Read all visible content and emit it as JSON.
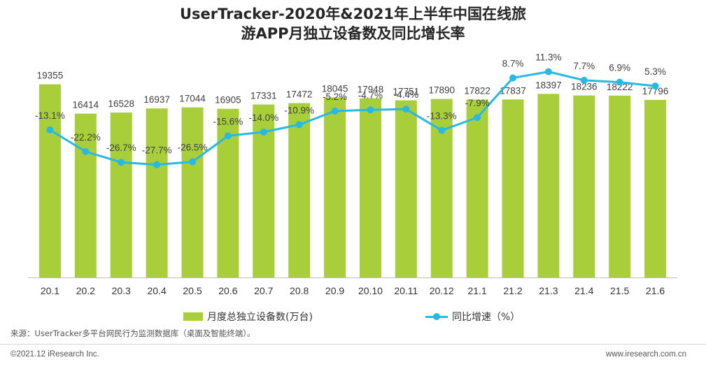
{
  "title_line1": "UserTracker-2020年&2021年上半年中国在线旅",
  "title_line2": "游APP月独立设备数及同比增长率",
  "chart_data": {
    "type": "bar+line",
    "categories": [
      "20.1",
      "20.2",
      "20.3",
      "20.4",
      "20.5",
      "20.6",
      "20.7",
      "20.8",
      "20.9",
      "20.10",
      "20.11",
      "20.12",
      "21.1",
      "21.2",
      "21.3",
      "21.4",
      "21.5",
      "21.6"
    ],
    "series": [
      {
        "name": "月度总独立设备数(万台)",
        "type": "bar",
        "color": "#a8cf3a",
        "values": [
          19355,
          16414,
          16528,
          16937,
          17044,
          16905,
          17331,
          17472,
          18045,
          17948,
          17751,
          17890,
          17822,
          17837,
          18397,
          18236,
          18222,
          17796
        ],
        "labels": [
          "19355",
          "16414",
          "16528",
          "16937",
          "17044",
          "16905",
          "17331",
          "17472",
          "18045",
          "17948",
          "17751",
          "17890",
          "17822",
          "17837",
          "18397",
          "18236",
          "18222",
          "17796"
        ]
      },
      {
        "name": "同比增速（%）",
        "type": "line",
        "color": "#27b9e6",
        "values": [
          -13.1,
          -22.2,
          -26.7,
          -27.7,
          -26.5,
          -15.6,
          -14.0,
          -10.9,
          -5.2,
          -4.7,
          -4.4,
          -13.3,
          -7.9,
          8.7,
          11.3,
          7.7,
          6.9,
          5.3
        ],
        "labels": [
          "-13.1%",
          "-22.2%",
          "-26.7%",
          "-27.7%",
          "-26.5%",
          "-15.6%",
          "-14.0%",
          "-10.9%",
          "-5.2%",
          "-4.7%",
          "-4.4%",
          "-13.3%",
          "-7.9%",
          "8.7%",
          "11.3%",
          "7.7%",
          "6.9%",
          "5.3%"
        ]
      }
    ],
    "bar_axis_range": [
      0,
      21500
    ],
    "line_axis_range": [
      -75,
      15
    ],
    "grid": false,
    "legend_position": "bottom"
  },
  "legend": {
    "bar_label": "月度总独立设备数(万台)",
    "line_label": "同比增速（%）"
  },
  "footer": {
    "source": "来源：UserTracker多平台网民行为监测数据库（桌面及智能终端）。",
    "copyright": "©2021.12 iResearch Inc.",
    "website": "www.iresearch.com.cn"
  }
}
